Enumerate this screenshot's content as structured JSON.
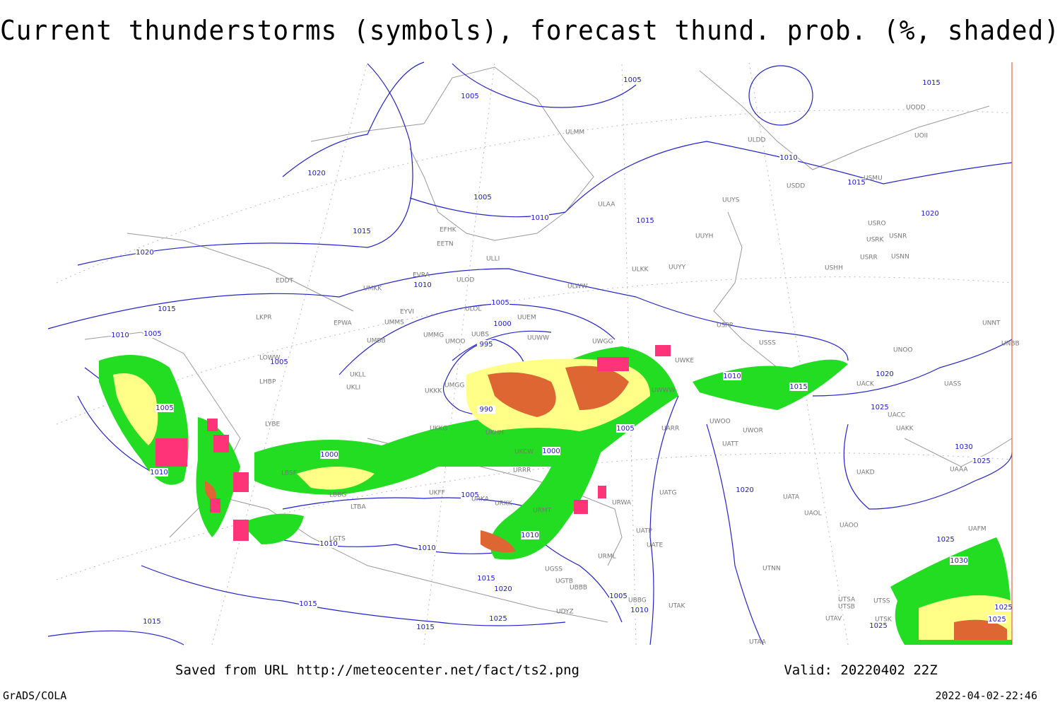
{
  "title": "Current thunderstorms (symbols), forecast thund. prob. (%, shaded)",
  "footer": {
    "saved": "Saved from URL http://meteocenter.net/fact/ts2.png",
    "valid": "Valid: 20220402 22Z",
    "software": "GrADS/COLA",
    "timestamp": "2022-04-02-22:46"
  },
  "isobar_labels": [
    1005,
    1005,
    1020,
    1005,
    1010,
    1015,
    1020,
    1015,
    1010,
    1015,
    1015,
    1020,
    1010,
    1005,
    1000,
    995,
    1015,
    1010,
    1005,
    1005,
    1005,
    1010,
    1000,
    990,
    1000,
    1005,
    1005,
    1010,
    1010,
    1010,
    1015,
    1020,
    1025,
    1015,
    1015,
    1015,
    1005,
    1010,
    1020,
    1025,
    1020,
    1015,
    1010,
    1030,
    1025,
    1025,
    1030,
    1025,
    1025,
    1025
  ],
  "stations": [
    "ULMM",
    "ULDD",
    "UUYS",
    "ULAA",
    "USDD",
    "UUYH",
    "UUYY",
    "ULKK",
    "ULWW",
    "EFHK",
    "EETN",
    "ULLI",
    "EVRA",
    "ULOD",
    "UMKK",
    "EDDT",
    "ULOL",
    "EYVI",
    "UUEM",
    "EPWA",
    "UMMS",
    "LKPR",
    "UMMG",
    "UUBS",
    "UUWW",
    "UMOO",
    "UMBB",
    "UWGG",
    "USPP",
    "USSS",
    "UNNT",
    "UNBB",
    "LOWW",
    "UWKE",
    "LHBP",
    "UKLL",
    "UKLI",
    "UMGG",
    "UKKK",
    "UWWW",
    "UACC",
    "UARR",
    "UKHH",
    "UKCW",
    "UATT",
    "UWOO",
    "UWOR",
    "LYBE",
    "UKFF",
    "URRR",
    "UKKG",
    "URKA",
    "URKK",
    "UATG",
    "URWA",
    "URMT",
    "UATA",
    "UAOL",
    "UAOO",
    "UATP",
    "UATE",
    "URML",
    "UGSS",
    "UTNN",
    "UGTB",
    "UBBB",
    "UBBG",
    "UTAK",
    "UDYZ",
    "UTSB",
    "UTSS",
    "UTSA",
    "UTAV",
    "UTSK",
    "UTAA",
    "LGTS",
    "LBSF",
    "LBBG",
    "LTBA",
    "UAKK",
    "UASS",
    "UACK",
    "UAKD",
    "UAAA",
    "UNOO",
    "UOII",
    "UODD",
    "USRR",
    "USRK",
    "USRO",
    "USNN",
    "USNR",
    "USHH",
    "USMU",
    "UAFM"
  ]
}
